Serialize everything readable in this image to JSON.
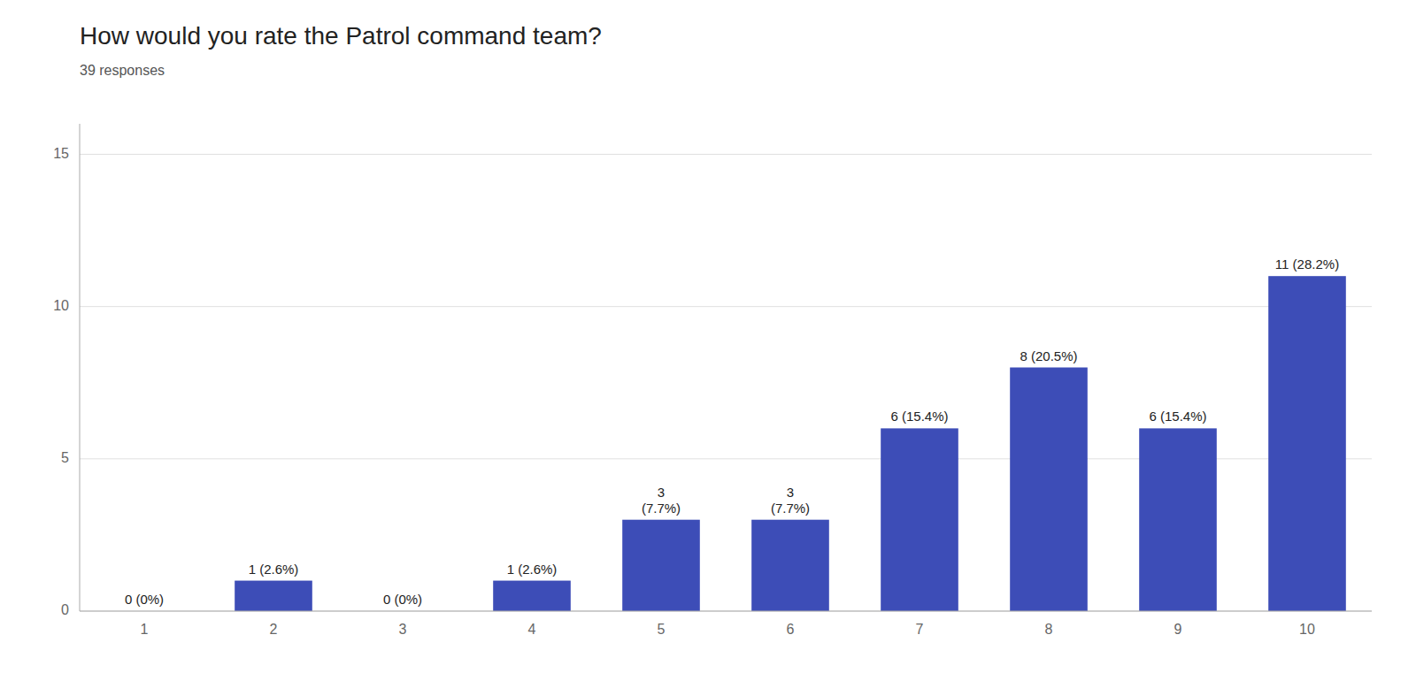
{
  "chart_data": {
    "type": "bar",
    "title": "How would you rate the Patrol command team?",
    "subtitle": "39 responses",
    "categories": [
      1,
      2,
      3,
      4,
      5,
      6,
      7,
      8,
      9,
      10
    ],
    "values": [
      0,
      1,
      0,
      1,
      3,
      3,
      6,
      8,
      6,
      11
    ],
    "value_labels": [
      "0 (0%)",
      "1 (2.6%)",
      "0 (0%)",
      "1 (2.6%)",
      "3\n(7.7%)",
      "3\n(7.7%)",
      "6 (15.4%)",
      "8 (20.5%)",
      "6 (15.4%)",
      "11 (28.2%)"
    ],
    "data_labels": true,
    "color": "#3d4db7",
    "ylim": [
      0,
      16
    ],
    "yticks": [
      0,
      5,
      10,
      15
    ],
    "grid": true
  }
}
